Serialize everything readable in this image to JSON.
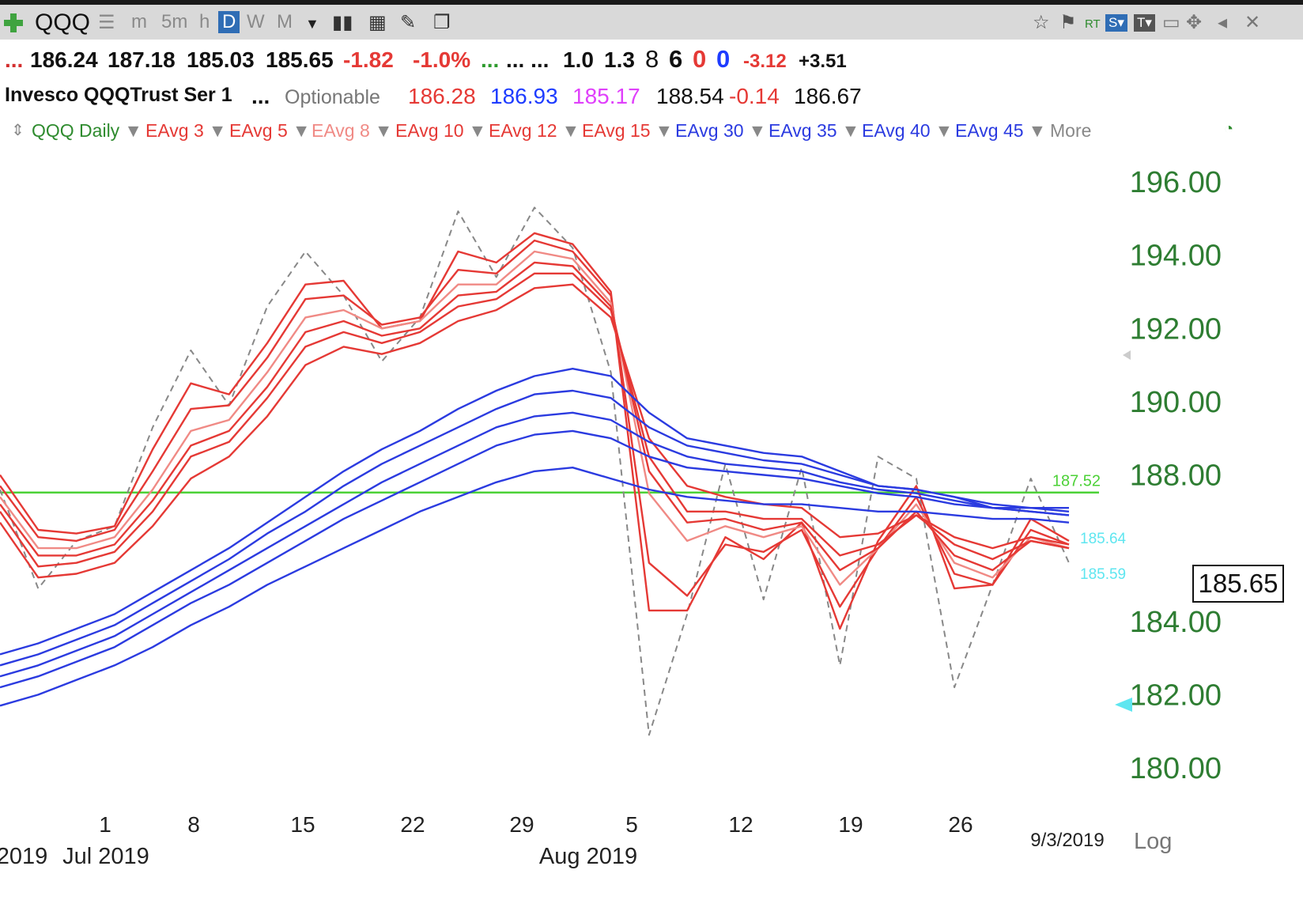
{
  "toolbar": {
    "symbol": "QQQ",
    "timeframes": [
      "m",
      "5m",
      "h",
      "D",
      "W",
      "M"
    ],
    "active_timeframe": "D"
  },
  "quote": {
    "open": "186.24",
    "high": "187.18",
    "low": "185.03",
    "close": "185.65",
    "change": "-1.82",
    "change_pct": "-1.0%",
    "dots_green": "...",
    "dots": "... ...",
    "v1": "1.0",
    "v2": "1.3",
    "v3": "8",
    "v4": "6",
    "v5": "0",
    "v6": "0",
    "v7": "-3.12",
    "v8": "+3.51",
    "lead": "..."
  },
  "info": {
    "name": "Invesco QQQTrust Ser 1",
    "ellipsis": "...",
    "optionable": "Optionable",
    "a": "186.28",
    "b": "186.93",
    "c": "185.17",
    "d": "188.54",
    "e": "-0.14",
    "f": "186.67"
  },
  "indicators": {
    "chart_label": "QQQ Daily",
    "items": [
      "EAvg 3",
      "EAvg 5",
      "EAvg 8",
      "EAvg 10",
      "EAvg 12",
      "EAvg 15",
      "EAvg 30",
      "EAvg 35",
      "EAvg 40",
      "EAvg 45"
    ],
    "colors": [
      "#e53935",
      "#e53935",
      "#f08a85",
      "#e53935",
      "#e53935",
      "#e53935",
      "#2b3be0",
      "#2b3be0",
      "#2b3be0",
      "#2b3be0"
    ],
    "more": "More"
  },
  "chart_data": {
    "type": "line",
    "y_ticks": [
      "196.00",
      "194.00",
      "192.00",
      "190.00",
      "188.00",
      "184.00",
      "182.00",
      "180.00"
    ],
    "ylim": [
      178.5,
      197
    ],
    "x_ticks": [
      "1",
      "8",
      "15",
      "22",
      "29",
      "5",
      "12",
      "19",
      "26"
    ],
    "months": [
      "2019",
      "Jul 2019",
      "Aug 2019"
    ],
    "date_label": "9/3/2019",
    "scale_label": "Log",
    "horizontal_line": {
      "value": 187.52,
      "label": "187.52",
      "color": "#4cd137"
    },
    "last_price": "185.65",
    "marker_upper": "185.64",
    "marker_lower": "185.59",
    "series": [
      {
        "color": "#888888",
        "dashed": true,
        "values": [
          187.6,
          184.9,
          186.2,
          186.6,
          189.3,
          191.4,
          189.9,
          192.6,
          194.1,
          192.9,
          191.1,
          192.3,
          195.2,
          193.4,
          195.3,
          194.2,
          190.8,
          180.9,
          184.2,
          188.3,
          184.6,
          188.2,
          182.8,
          188.5,
          187.9,
          182.2,
          185.0,
          187.9,
          185.6
        ]
      },
      {
        "color": "#e53935",
        "values": [
          188.0,
          186.5,
          186.4,
          186.6,
          188.7,
          190.5,
          190.2,
          191.6,
          193.2,
          193.3,
          192.0,
          192.2,
          194.1,
          193.8,
          194.6,
          194.3,
          193.0,
          184.3,
          184.3,
          186.3,
          185.7,
          186.7,
          183.8,
          186.2,
          187.7,
          184.9,
          185.0,
          186.8,
          186.2
        ]
      },
      {
        "color": "#e53935",
        "values": [
          187.7,
          186.3,
          186.2,
          186.5,
          188.1,
          189.8,
          189.9,
          191.2,
          192.8,
          192.9,
          192.1,
          192.3,
          193.6,
          193.5,
          194.4,
          194.1,
          192.9,
          185.6,
          184.7,
          186.1,
          185.9,
          186.5,
          184.4,
          186.0,
          187.4,
          185.3,
          185.0,
          186.5,
          186.1
        ]
      },
      {
        "color": "#f08a85",
        "values": [
          187.4,
          186.0,
          186.0,
          186.3,
          187.6,
          189.2,
          189.5,
          190.8,
          192.3,
          192.5,
          192.0,
          192.2,
          193.2,
          193.2,
          194.1,
          193.9,
          192.7,
          187.5,
          186.2,
          186.6,
          186.3,
          186.6,
          185.0,
          186.0,
          187.2,
          185.6,
          185.2,
          186.3,
          186.0
        ]
      },
      {
        "color": "#e53935",
        "values": [
          187.2,
          185.8,
          185.8,
          186.1,
          187.3,
          188.8,
          189.2,
          190.4,
          191.9,
          192.2,
          191.8,
          192.0,
          192.9,
          193.0,
          193.8,
          193.7,
          192.6,
          188.1,
          186.7,
          186.8,
          186.5,
          186.7,
          185.4,
          186.0,
          187.0,
          185.8,
          185.4,
          186.2,
          186.0
        ]
      },
      {
        "color": "#e53935",
        "values": [
          187.0,
          185.5,
          185.6,
          185.9,
          187.0,
          188.5,
          188.9,
          190.1,
          191.5,
          191.9,
          191.6,
          191.9,
          192.6,
          192.8,
          193.5,
          193.5,
          192.5,
          188.5,
          187.0,
          187.0,
          186.8,
          186.8,
          185.8,
          186.1,
          186.9,
          186.1,
          185.7,
          186.2,
          186.0
        ]
      },
      {
        "color": "#e53935",
        "values": [
          186.7,
          185.2,
          185.3,
          185.6,
          186.6,
          187.9,
          188.5,
          189.6,
          191.0,
          191.5,
          191.3,
          191.6,
          192.2,
          192.5,
          193.1,
          193.2,
          192.3,
          189.0,
          187.7,
          187.4,
          187.2,
          187.1,
          186.3,
          186.4,
          186.9,
          186.3,
          186.0,
          186.3,
          186.1
        ]
      },
      {
        "color": "#2b3be0",
        "values": [
          183.1,
          183.4,
          183.8,
          184.2,
          184.8,
          185.4,
          186.0,
          186.7,
          187.4,
          188.1,
          188.7,
          189.2,
          189.8,
          190.3,
          190.7,
          190.9,
          190.7,
          189.7,
          189.0,
          188.8,
          188.6,
          188.5,
          188.1,
          187.7,
          187.6,
          187.4,
          187.1,
          187.1,
          187.1
        ]
      },
      {
        "color": "#2b3be0",
        "values": [
          182.8,
          183.1,
          183.5,
          183.9,
          184.5,
          185.1,
          185.7,
          186.4,
          187.0,
          187.7,
          188.3,
          188.8,
          189.3,
          189.8,
          190.2,
          190.3,
          190.1,
          189.3,
          188.8,
          188.6,
          188.4,
          188.3,
          188.0,
          187.7,
          187.6,
          187.4,
          187.2,
          187.1,
          187.0
        ]
      },
      {
        "color": "#2b3be0",
        "values": [
          182.5,
          182.8,
          183.2,
          183.6,
          184.2,
          184.8,
          185.4,
          186.0,
          186.6,
          187.2,
          187.8,
          188.3,
          188.8,
          189.3,
          189.6,
          189.7,
          189.5,
          188.9,
          188.5,
          188.3,
          188.2,
          188.1,
          187.8,
          187.6,
          187.5,
          187.3,
          187.1,
          187.0,
          186.9
        ]
      },
      {
        "color": "#2b3be0",
        "values": [
          182.2,
          182.5,
          182.9,
          183.3,
          183.9,
          184.5,
          185.0,
          185.6,
          186.2,
          186.8,
          187.3,
          187.8,
          188.3,
          188.8,
          189.1,
          189.2,
          189.0,
          188.5,
          188.2,
          188.1,
          188.0,
          187.9,
          187.7,
          187.5,
          187.4,
          187.2,
          187.1,
          187.0,
          186.9
        ]
      },
      {
        "color": "#2b3be0",
        "values": [
          181.7,
          182.0,
          182.4,
          182.8,
          183.3,
          183.9,
          184.4,
          185.0,
          185.5,
          186.0,
          186.5,
          187.0,
          187.4,
          187.8,
          188.1,
          188.2,
          187.9,
          187.6,
          187.4,
          187.3,
          187.2,
          187.2,
          187.1,
          187.0,
          187.0,
          186.9,
          186.8,
          186.8,
          186.7
        ]
      }
    ]
  }
}
